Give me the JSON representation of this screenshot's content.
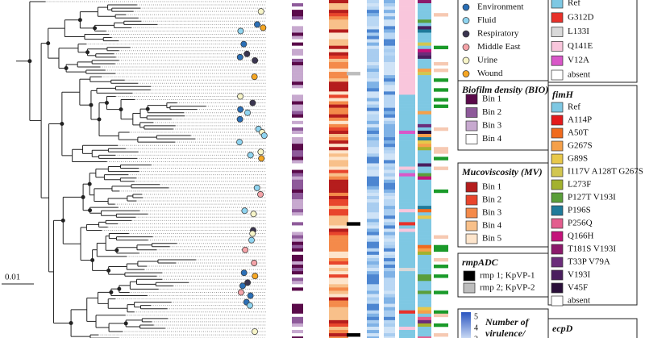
{
  "source_legend": {
    "items": [
      {
        "label": "Environment",
        "color": "#2b6fb6"
      },
      {
        "label": "Fluid",
        "color": "#8fd4f0"
      },
      {
        "label": "Respiratory",
        "color": "#3a3550"
      },
      {
        "label": "Middle East",
        "color": "#f4a3a8"
      },
      {
        "label": "Urine",
        "color": "#f7f5c8"
      },
      {
        "label": "Wound",
        "color": "#f5a623"
      }
    ]
  },
  "mutation_legend": {
    "items": [
      {
        "label": "Ref",
        "color": "#7ec8e3"
      },
      {
        "label": "G312D",
        "color": "#e8312a"
      },
      {
        "label": "L133I",
        "color": "#d9d9d9"
      },
      {
        "label": "Q141E",
        "color": "#f9c6dc"
      },
      {
        "label": "V12A",
        "color": "#d957c8"
      },
      {
        "label": "absent",
        "color": "#ffffff"
      }
    ]
  },
  "biofilm_legend": {
    "title": "Biofilm density (BIO)",
    "items": [
      {
        "label": "Bin 1",
        "color": "#5a0a4a"
      },
      {
        "label": "Bin 2",
        "color": "#8e5a9a"
      },
      {
        "label": "Bin 3",
        "color": "#c7a9cf"
      },
      {
        "label": "Bin 4",
        "color": "#ffffff"
      }
    ]
  },
  "mucoviscosity_legend": {
    "title": "Mucoviscosity (MV)",
    "items": [
      {
        "label": "Bin 1",
        "color": "#b51d1d"
      },
      {
        "label": "Bin 2",
        "color": "#e8452c"
      },
      {
        "label": "Bin 3",
        "color": "#f48a4a"
      },
      {
        "label": "Bin 4",
        "color": "#f8c08a"
      },
      {
        "label": "Bin 5",
        "color": "#fde5cc"
      }
    ]
  },
  "rmp_legend": {
    "title": "rmpADC",
    "items": [
      {
        "label": "rmp 1; KpVP-1",
        "color": "#000000"
      },
      {
        "label": "rmp 2; KpVP-2",
        "color": "#bdbdbd"
      }
    ]
  },
  "virulence_legend": {
    "title_lines": [
      "Number of",
      "virulence/"
    ],
    "ticks": [
      5,
      4,
      3
    ]
  },
  "fimh_legend": {
    "title": "fimH",
    "items": [
      {
        "label": "Ref",
        "color": "#7ec8e3"
      },
      {
        "label": "A114P",
        "color": "#e41a1c"
      },
      {
        "label": "A50T",
        "color": "#f06a1e"
      },
      {
        "label": "G267S",
        "color": "#f5a04a"
      },
      {
        "label": "G89S",
        "color": "#e8c84a"
      },
      {
        "label": "I117V A128T G267S",
        "color": "#d2c650"
      },
      {
        "label": "L273F",
        "color": "#a3b22e"
      },
      {
        "label": "P127T V193I",
        "color": "#5a9e3a"
      },
      {
        "label": "P196S",
        "color": "#1f7a9a"
      },
      {
        "label": "P256Q",
        "color": "#e35d8e"
      },
      {
        "label": "Q166H",
        "color": "#c4127a"
      },
      {
        "label": "T181S V193I",
        "color": "#8b1a6b"
      },
      {
        "label": "T33P V79A",
        "color": "#6b2d7a"
      },
      {
        "label": "V193I",
        "color": "#4a1f5e"
      },
      {
        "label": "V45F",
        "color": "#2a0f3a"
      },
      {
        "label": "absent",
        "color": "#ffffff"
      }
    ]
  },
  "ecpd_legend": {
    "title": "ecpD"
  },
  "scale_bar": "0.01"
}
